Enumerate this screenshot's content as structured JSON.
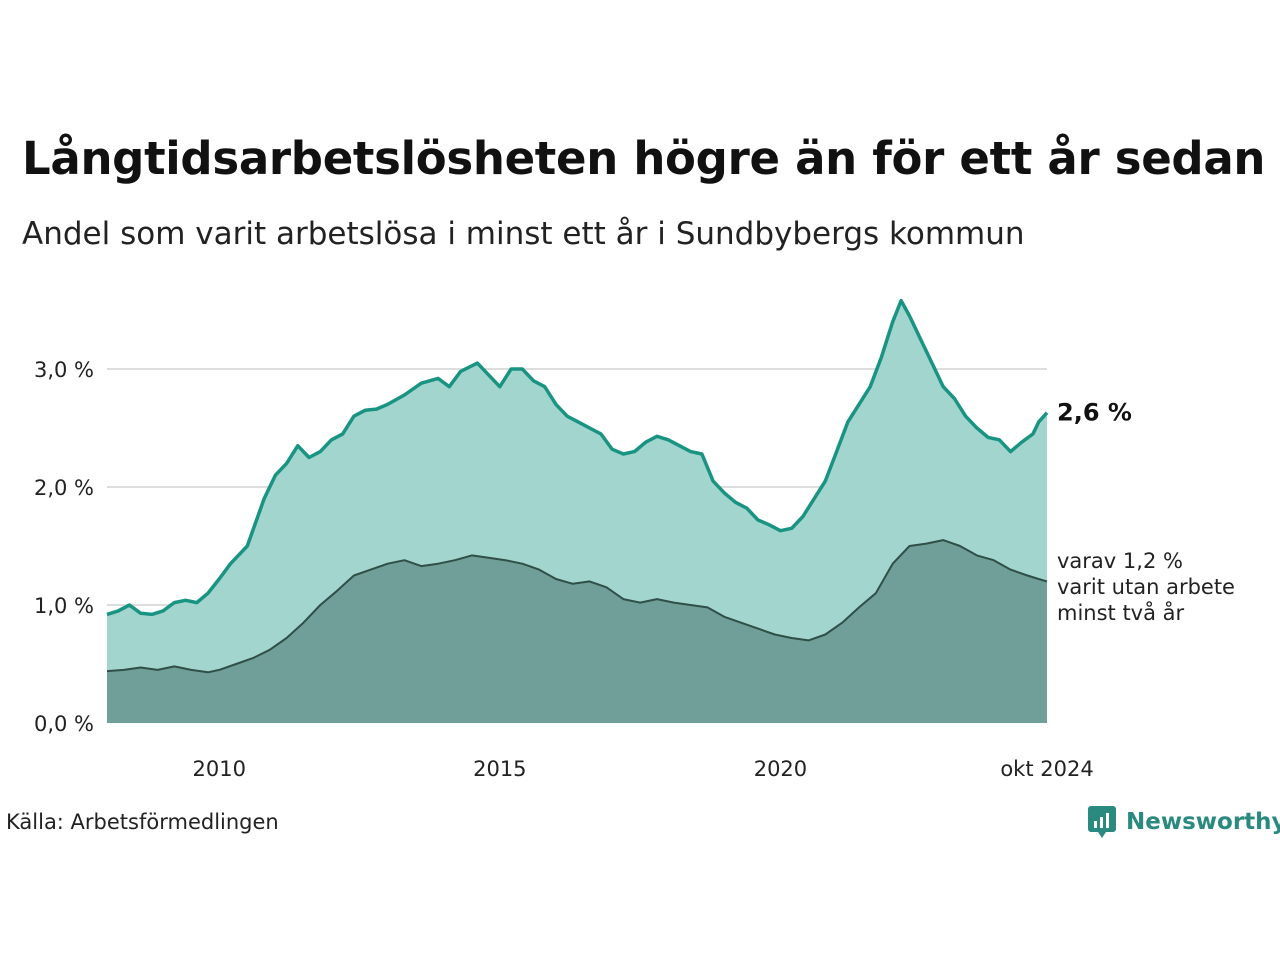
{
  "title": "Långtidsarbetslösheten högre än för ett år sedan",
  "subtitle": "Andel som varit arbetslösa i minst ett år i Sundbybergs kommun",
  "source": "Källa: Arbetsförmedlingen",
  "brand": "Newsworthy",
  "colors": {
    "upper_line": "#1a9482",
    "upper_fill": "#a3d5cf",
    "lower_line": "#2f4f47",
    "lower_fill": "#6f9f98",
    "grid": "#dddddd",
    "brand": "#2a8a80"
  },
  "chart_data": {
    "type": "area",
    "title": "Långtidsarbetslösheten högre än för ett år sedan",
    "subtitle": "Andel som varit arbetslösa i minst ett år i Sundbybergs kommun",
    "xlabel": "",
    "ylabel": "",
    "x_start": 2008.0,
    "x_end": 2024.75,
    "xlim": [
      2008.0,
      2024.75
    ],
    "ylim": [
      0,
      3.6
    ],
    "yticks": [
      0,
      1,
      2,
      3
    ],
    "ytick_labels": [
      "0,0 %",
      "1,0 %",
      "2,0 %",
      "3,0 %"
    ],
    "xticks": [
      2010,
      2015,
      2020,
      2024.75
    ],
    "xtick_labels": [
      "2010",
      "2015",
      "2020",
      "okt 2024"
    ],
    "grid": true,
    "series": [
      {
        "name": "Minst ett år",
        "end_label": "2,6 %",
        "points": [
          [
            2008.0,
            0.92
          ],
          [
            2008.2,
            0.95
          ],
          [
            2008.4,
            1.0
          ],
          [
            2008.6,
            0.93
          ],
          [
            2008.8,
            0.92
          ],
          [
            2009.0,
            0.95
          ],
          [
            2009.2,
            1.02
          ],
          [
            2009.4,
            1.04
          ],
          [
            2009.6,
            1.02
          ],
          [
            2009.8,
            1.1
          ],
          [
            2010.0,
            1.22
          ],
          [
            2010.2,
            1.35
          ],
          [
            2010.5,
            1.5
          ],
          [
            2010.8,
            1.9
          ],
          [
            2011.0,
            2.1
          ],
          [
            2011.2,
            2.2
          ],
          [
            2011.4,
            2.35
          ],
          [
            2011.6,
            2.25
          ],
          [
            2011.8,
            2.3
          ],
          [
            2012.0,
            2.4
          ],
          [
            2012.2,
            2.45
          ],
          [
            2012.4,
            2.6
          ],
          [
            2012.6,
            2.65
          ],
          [
            2012.8,
            2.66
          ],
          [
            2013.0,
            2.7
          ],
          [
            2013.3,
            2.78
          ],
          [
            2013.6,
            2.88
          ],
          [
            2013.9,
            2.92
          ],
          [
            2014.1,
            2.85
          ],
          [
            2014.3,
            2.98
          ],
          [
            2014.6,
            3.05
          ],
          [
            2014.8,
            2.95
          ],
          [
            2015.0,
            2.85
          ],
          [
            2015.2,
            3.0
          ],
          [
            2015.4,
            3.0
          ],
          [
            2015.6,
            2.9
          ],
          [
            2015.8,
            2.85
          ],
          [
            2016.0,
            2.7
          ],
          [
            2016.2,
            2.6
          ],
          [
            2016.4,
            2.55
          ],
          [
            2016.6,
            2.5
          ],
          [
            2016.8,
            2.45
          ],
          [
            2017.0,
            2.32
          ],
          [
            2017.2,
            2.28
          ],
          [
            2017.4,
            2.3
          ],
          [
            2017.6,
            2.38
          ],
          [
            2017.8,
            2.43
          ],
          [
            2018.0,
            2.4
          ],
          [
            2018.2,
            2.35
          ],
          [
            2018.4,
            2.3
          ],
          [
            2018.6,
            2.28
          ],
          [
            2018.8,
            2.05
          ],
          [
            2019.0,
            1.95
          ],
          [
            2019.2,
            1.87
          ],
          [
            2019.4,
            1.82
          ],
          [
            2019.6,
            1.72
          ],
          [
            2019.8,
            1.68
          ],
          [
            2020.0,
            1.63
          ],
          [
            2020.2,
            1.65
          ],
          [
            2020.4,
            1.75
          ],
          [
            2020.6,
            1.9
          ],
          [
            2020.8,
            2.05
          ],
          [
            2021.0,
            2.3
          ],
          [
            2021.2,
            2.55
          ],
          [
            2021.4,
            2.7
          ],
          [
            2021.6,
            2.85
          ],
          [
            2021.8,
            3.1
          ],
          [
            2022.0,
            3.4
          ],
          [
            2022.15,
            3.58
          ],
          [
            2022.3,
            3.45
          ],
          [
            2022.5,
            3.25
          ],
          [
            2022.7,
            3.05
          ],
          [
            2022.9,
            2.85
          ],
          [
            2023.1,
            2.75
          ],
          [
            2023.3,
            2.6
          ],
          [
            2023.5,
            2.5
          ],
          [
            2023.7,
            2.42
          ],
          [
            2023.9,
            2.4
          ],
          [
            2024.1,
            2.3
          ],
          [
            2024.3,
            2.38
          ],
          [
            2024.5,
            2.45
          ],
          [
            2024.6,
            2.55
          ],
          [
            2024.75,
            2.63
          ]
        ]
      },
      {
        "name": "varav minst två år",
        "end_label": "varav 1,2 %",
        "end_label_lines": [
          "varav 1,2 %",
          "varit utan arbete",
          "minst två år"
        ],
        "points": [
          [
            2008.0,
            0.44
          ],
          [
            2008.3,
            0.45
          ],
          [
            2008.6,
            0.47
          ],
          [
            2008.9,
            0.45
          ],
          [
            2009.2,
            0.48
          ],
          [
            2009.5,
            0.45
          ],
          [
            2009.8,
            0.43
          ],
          [
            2010.0,
            0.45
          ],
          [
            2010.3,
            0.5
          ],
          [
            2010.6,
            0.55
          ],
          [
            2010.9,
            0.62
          ],
          [
            2011.2,
            0.72
          ],
          [
            2011.5,
            0.85
          ],
          [
            2011.8,
            1.0
          ],
          [
            2012.1,
            1.12
          ],
          [
            2012.4,
            1.25
          ],
          [
            2012.7,
            1.3
          ],
          [
            2013.0,
            1.35
          ],
          [
            2013.3,
            1.38
          ],
          [
            2013.6,
            1.33
          ],
          [
            2013.9,
            1.35
          ],
          [
            2014.2,
            1.38
          ],
          [
            2014.5,
            1.42
          ],
          [
            2014.8,
            1.4
          ],
          [
            2015.1,
            1.38
          ],
          [
            2015.4,
            1.35
          ],
          [
            2015.7,
            1.3
          ],
          [
            2016.0,
            1.22
          ],
          [
            2016.3,
            1.18
          ],
          [
            2016.6,
            1.2
          ],
          [
            2016.9,
            1.15
          ],
          [
            2017.2,
            1.05
          ],
          [
            2017.5,
            1.02
          ],
          [
            2017.8,
            1.05
          ],
          [
            2018.1,
            1.02
          ],
          [
            2018.4,
            1.0
          ],
          [
            2018.7,
            0.98
          ],
          [
            2019.0,
            0.9
          ],
          [
            2019.3,
            0.85
          ],
          [
            2019.6,
            0.8
          ],
          [
            2019.9,
            0.75
          ],
          [
            2020.2,
            0.72
          ],
          [
            2020.5,
            0.7
          ],
          [
            2020.8,
            0.75
          ],
          [
            2021.1,
            0.85
          ],
          [
            2021.4,
            0.98
          ],
          [
            2021.7,
            1.1
          ],
          [
            2022.0,
            1.35
          ],
          [
            2022.3,
            1.5
          ],
          [
            2022.6,
            1.52
          ],
          [
            2022.9,
            1.55
          ],
          [
            2023.2,
            1.5
          ],
          [
            2023.5,
            1.42
          ],
          [
            2023.8,
            1.38
          ],
          [
            2024.1,
            1.3
          ],
          [
            2024.4,
            1.25
          ],
          [
            2024.6,
            1.22
          ],
          [
            2024.75,
            1.2
          ]
        ]
      }
    ]
  }
}
